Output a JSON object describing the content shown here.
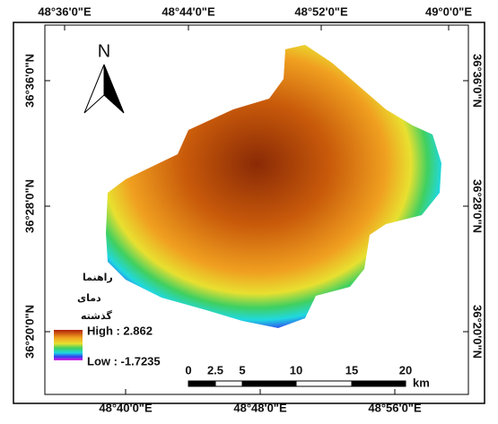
{
  "labels": {
    "top": [
      "48°36'0\"E",
      "48°44'0\"E",
      "48°52'0\"E",
      "49°0'0\"E"
    ],
    "bottom": [
      "48°40'0\"E",
      "48°48'0\"E",
      "48°56'0\"E"
    ],
    "left": [
      "36°36'0\"N",
      "36°28'0\"N",
      "36°20'0\"N"
    ],
    "right": [
      "36°36'0\"N",
      "36°28'0\"N",
      "36°20'0\"N"
    ]
  },
  "north": "N",
  "legend": {
    "title_lines": [
      "راهنما",
      "دمای",
      "گذشته"
    ],
    "high": "High : 2.862",
    "low": "Low : -1.7235"
  },
  "scale_bar": {
    "ticks": [
      "0",
      "2.5",
      "5",
      "10",
      "15",
      "20"
    ],
    "unit": "km"
  }
}
